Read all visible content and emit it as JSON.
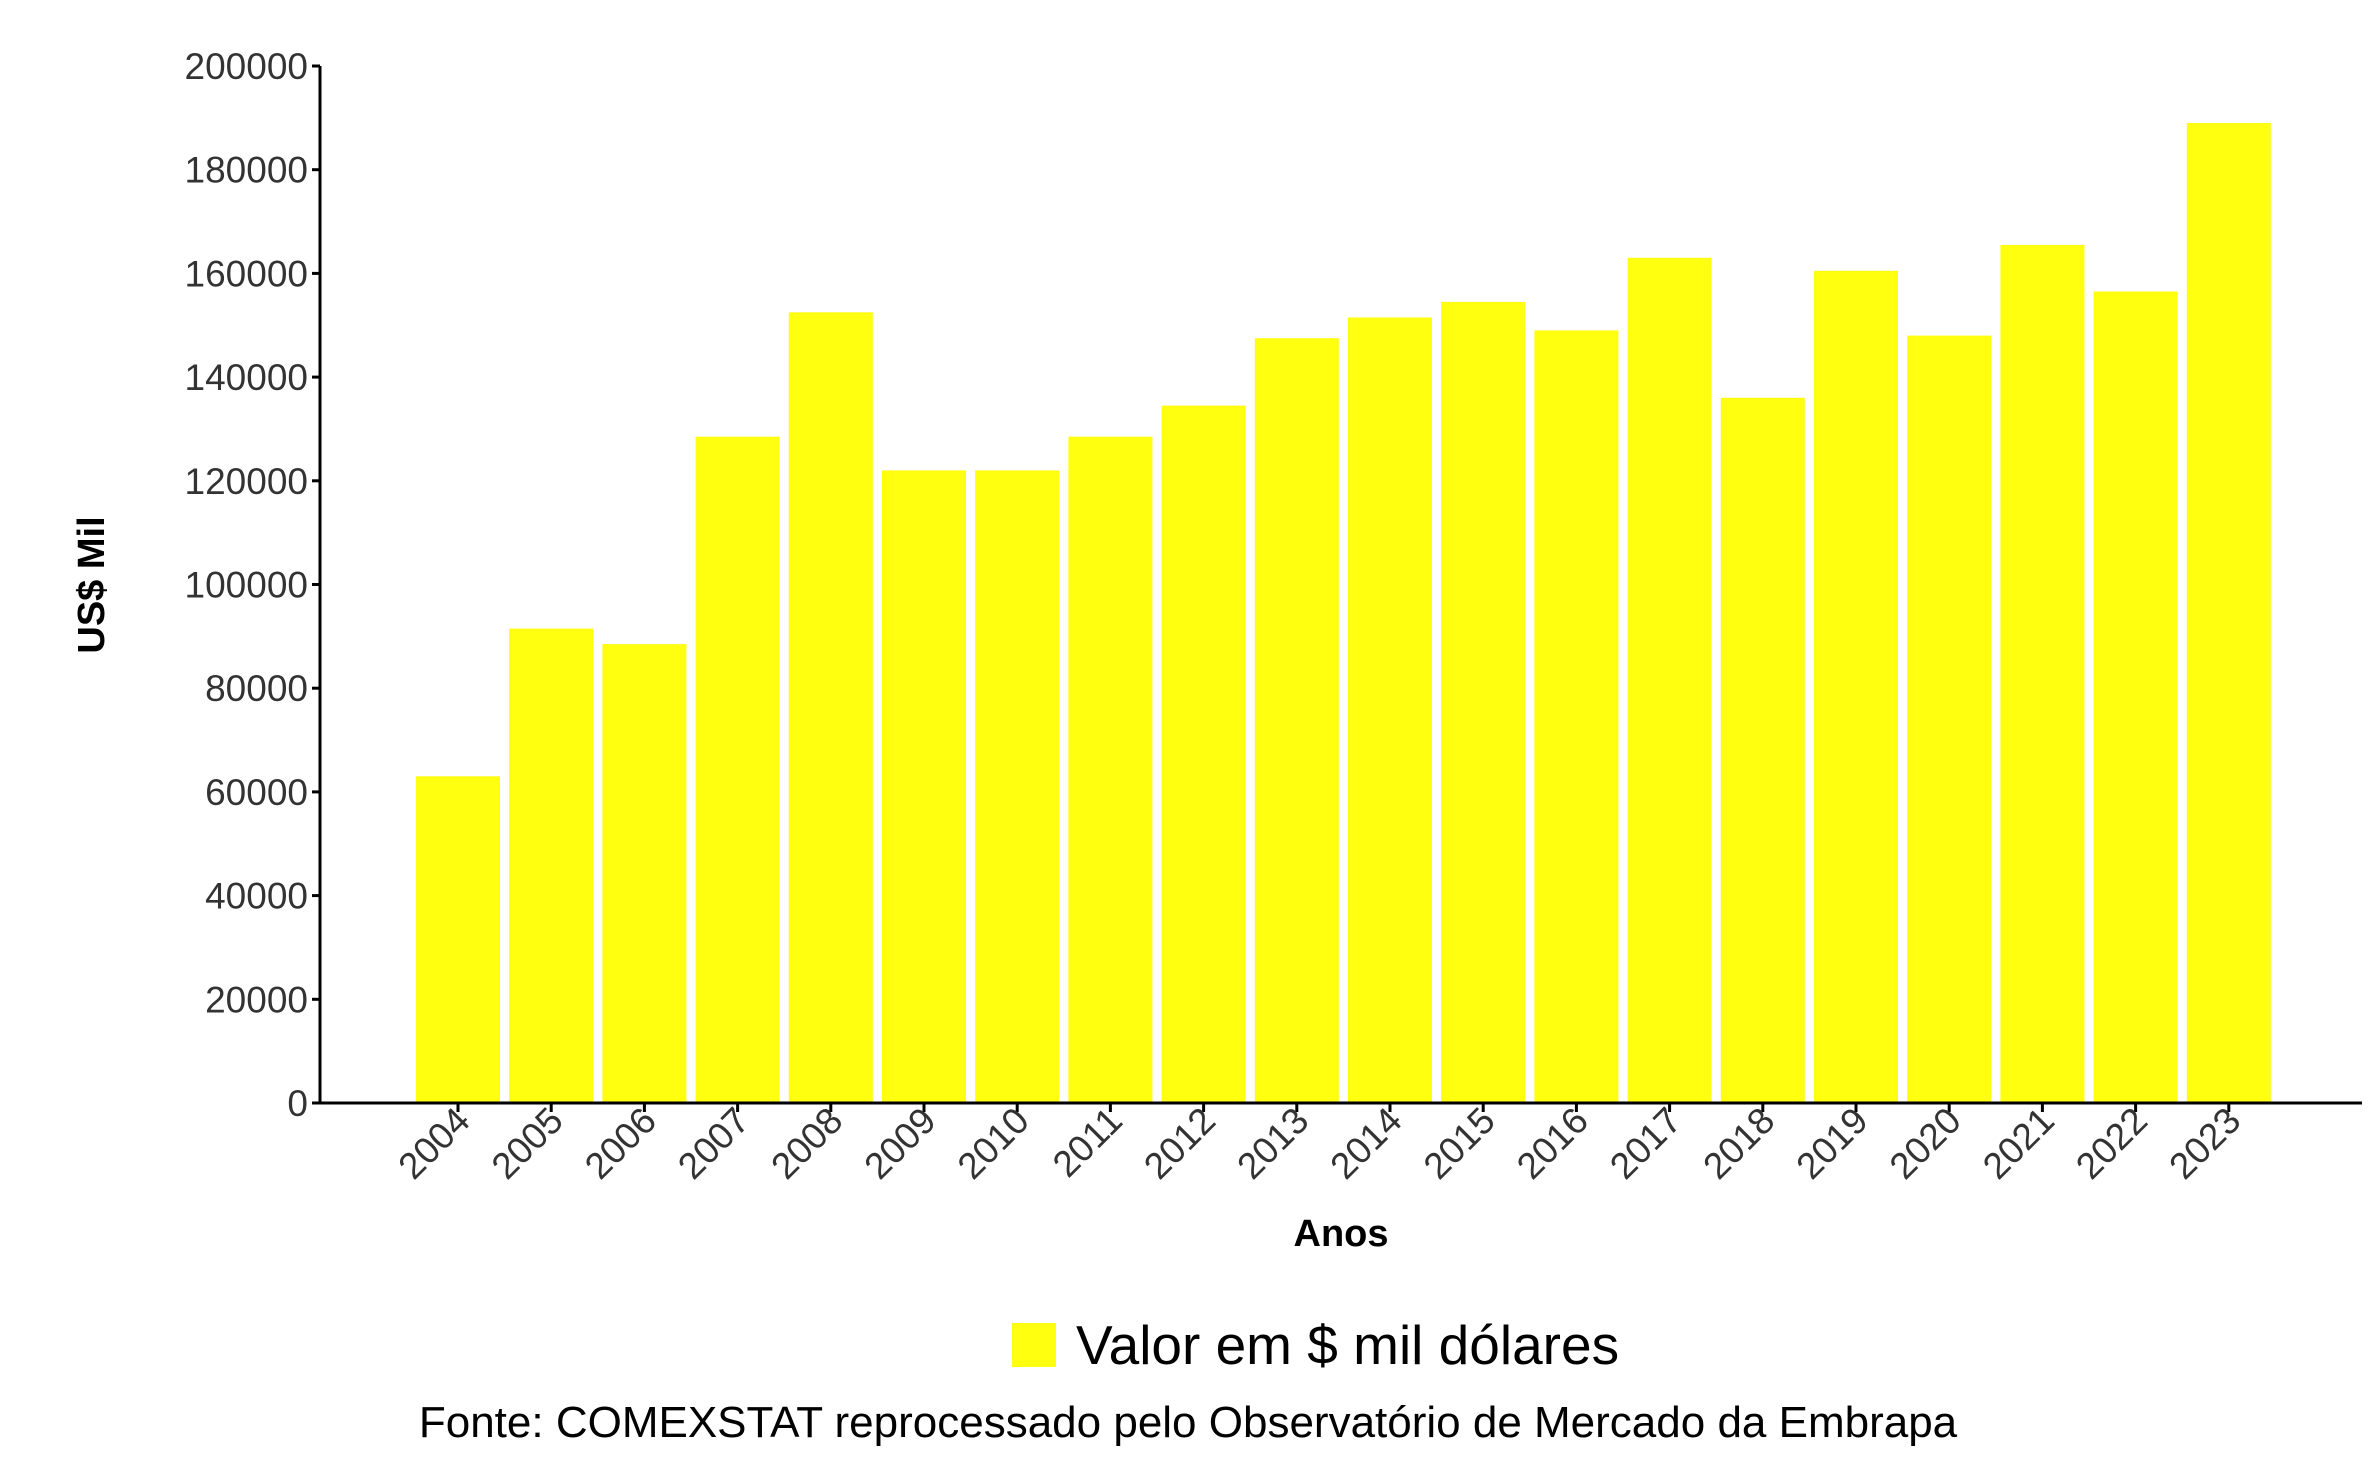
{
  "chart_data": {
    "type": "bar",
    "categories": [
      "2004",
      "2005",
      "2006",
      "2007",
      "2008",
      "2009",
      "2010",
      "2011",
      "2012",
      "2013",
      "2014",
      "2015",
      "2016",
      "2017",
      "2018",
      "2019",
      "2020",
      "2021",
      "2022",
      "2023"
    ],
    "series": [
      {
        "name": "Valor em $ mil dólares",
        "values": [
          63000,
          91500,
          88500,
          128500,
          152500,
          122000,
          122000,
          128500,
          134500,
          147500,
          151500,
          154500,
          149000,
          163000,
          136000,
          160500,
          148000,
          165500,
          156500,
          189000
        ],
        "color": "#FFFF0F"
      }
    ],
    "xlabel": "Anos",
    "ylabel": "US$ Mil",
    "ylim": [
      0,
      200000
    ],
    "yticks": [
      "0",
      "20000",
      "40000",
      "60000",
      "80000",
      "100000",
      "120000",
      "140000",
      "160000",
      "180000",
      "200000"
    ],
    "grid": false,
    "legend_position": "bottom"
  },
  "footer": {
    "source": "Fonte: COMEXSTAT reprocessado pelo Observatório de Mercado da Embrapa"
  }
}
